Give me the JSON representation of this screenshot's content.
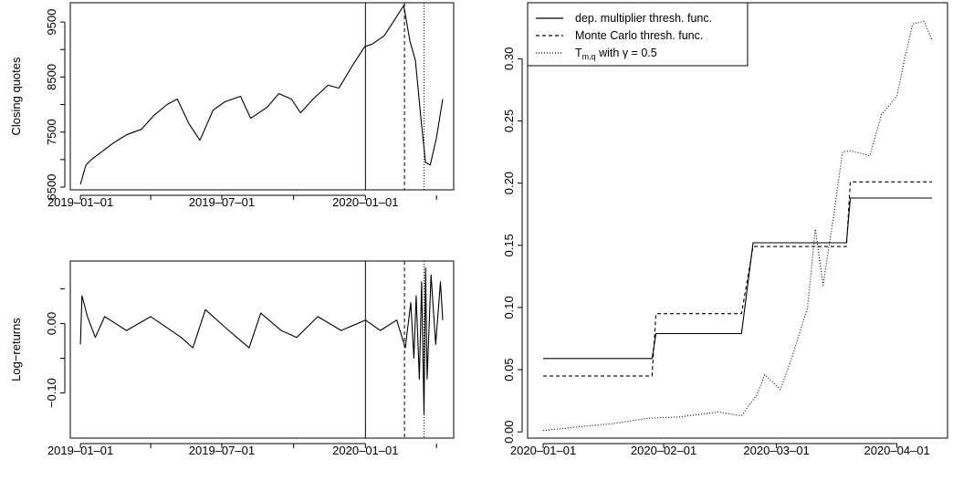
{
  "chart_data": [
    {
      "type": "line",
      "ylabel": "Closing quotes",
      "x_ticks": [
        "2019-01-01",
        "2019-07-01",
        "2020-01-01"
      ],
      "y_ticks": [
        "6500",
        "7500",
        "8500",
        "9500"
      ],
      "ylim": [
        6450,
        9850
      ],
      "vlines": [
        {
          "date": "2020-01-01",
          "style": "solid"
        },
        {
          "date": "2020-02-20",
          "style": "dashed"
        },
        {
          "date": "2020-03-16",
          "style": "dotted"
        }
      ],
      "series": [
        {
          "points": [
            [
              "2019-01-01",
              6550
            ],
            [
              "2019-01-08",
              6900
            ],
            [
              "2019-01-15",
              7000
            ],
            [
              "2019-01-29",
              7150
            ],
            [
              "2019-02-12",
              7300
            ],
            [
              "2019-03-01",
              7450
            ],
            [
              "2019-03-20",
              7550
            ],
            [
              "2019-04-05",
              7800
            ],
            [
              "2019-04-22",
              8000
            ],
            [
              "2019-05-05",
              8100
            ],
            [
              "2019-05-20",
              7650
            ],
            [
              "2019-06-03",
              7350
            ],
            [
              "2019-06-20",
              7900
            ],
            [
              "2019-07-05",
              8050
            ],
            [
              "2019-07-25",
              8150
            ],
            [
              "2019-08-07",
              7750
            ],
            [
              "2019-08-28",
              7950
            ],
            [
              "2019-09-12",
              8200
            ],
            [
              "2019-09-28",
              8100
            ],
            [
              "2019-10-10",
              7850
            ],
            [
              "2019-10-26",
              8100
            ],
            [
              "2019-11-14",
              8350
            ],
            [
              "2019-11-28",
              8300
            ],
            [
              "2019-12-15",
              8700
            ],
            [
              "2019-12-31",
              9050
            ],
            [
              "2020-01-10",
              9100
            ],
            [
              "2020-01-25",
              9250
            ],
            [
              "2020-02-10",
              9600
            ],
            [
              "2020-02-19",
              9800
            ],
            [
              "2020-02-27",
              9150
            ],
            [
              "2020-03-05",
              8800
            ],
            [
              "2020-03-12",
              7750
            ],
            [
              "2020-03-18",
              6950
            ],
            [
              "2020-03-24",
              6900
            ],
            [
              "2020-04-01",
              7400
            ],
            [
              "2020-04-09",
              8100
            ]
          ]
        }
      ]
    },
    {
      "type": "line",
      "ylabel": "Log−returns",
      "x_ticks": [
        "2019-01-01",
        "2019-07-01",
        "2020-01-01"
      ],
      "y_ticks": [
        "0.00",
        "−0.10"
      ],
      "ylim": [
        -0.165,
        0.09
      ],
      "vlines": [
        {
          "date": "2020-01-01",
          "style": "solid"
        },
        {
          "date": "2020-02-20",
          "style": "dashed"
        },
        {
          "date": "2020-03-16",
          "style": "dotted"
        }
      ],
      "series": [
        {
          "points": [
            [
              "2019-01-01",
              -0.03
            ],
            [
              "2019-01-03",
              0.04
            ],
            [
              "2019-01-10",
              0.01
            ],
            [
              "2019-01-20",
              -0.02
            ],
            [
              "2019-02-01",
              0.01
            ],
            [
              "2019-03-01",
              -0.01
            ],
            [
              "2019-04-01",
              0.01
            ],
            [
              "2019-05-10",
              -0.02
            ],
            [
              "2019-05-25",
              -0.035
            ],
            [
              "2019-06-10",
              0.02
            ],
            [
              "2019-07-10",
              -0.01
            ],
            [
              "2019-08-05",
              -0.035
            ],
            [
              "2019-08-20",
              0.015
            ],
            [
              "2019-09-15",
              -0.01
            ],
            [
              "2019-10-05",
              -0.02
            ],
            [
              "2019-11-01",
              0.01
            ],
            [
              "2019-12-01",
              -0.01
            ],
            [
              "2020-01-01",
              0.005
            ],
            [
              "2020-01-20",
              -0.01
            ],
            [
              "2020-02-10",
              0.005
            ],
            [
              "2020-02-21",
              -0.035
            ],
            [
              "2020-02-28",
              0.03
            ],
            [
              "2020-03-03",
              -0.05
            ],
            [
              "2020-03-06",
              0.04
            ],
            [
              "2020-03-10",
              -0.08
            ],
            [
              "2020-03-13",
              0.06
            ],
            [
              "2020-03-16",
              -0.13
            ],
            [
              "2020-03-18",
              0.08
            ],
            [
              "2020-03-20",
              -0.08
            ],
            [
              "2020-03-25",
              0.07
            ],
            [
              "2020-03-31",
              -0.03
            ],
            [
              "2020-04-06",
              0.06
            ],
            [
              "2020-04-09",
              0.005
            ]
          ]
        }
      ]
    },
    {
      "type": "line",
      "x_ticks": [
        "2020-01-01",
        "2020-02-01",
        "2020-03-01",
        "2020-04-01"
      ],
      "y_ticks": [
        "0.00",
        "0.05",
        "0.10",
        "0.15",
        "0.20",
        "0.25",
        "0.30"
      ],
      "ylim": [
        -0.005,
        0.345
      ],
      "legend_position": "top-left",
      "series": [
        {
          "name": "dep. multiplier thresh. func.",
          "style": "solid",
          "points": [
            [
              "2020-01-01",
              0.059
            ],
            [
              "2020-01-29",
              0.059
            ],
            [
              "2020-01-30",
              0.079
            ],
            [
              "2020-02-21",
              0.079
            ],
            [
              "2020-02-24",
              0.152
            ],
            [
              "2020-03-19",
              0.152
            ],
            [
              "2020-03-20",
              0.188
            ],
            [
              "2020-04-10",
              0.188
            ]
          ]
        },
        {
          "name": "Monte Carlo thresh. func.",
          "style": "dashed",
          "points": [
            [
              "2020-01-01",
              0.045
            ],
            [
              "2020-01-29",
              0.045
            ],
            [
              "2020-01-30",
              0.095
            ],
            [
              "2020-02-21",
              0.095
            ],
            [
              "2020-02-24",
              0.149
            ],
            [
              "2020-03-19",
              0.149
            ],
            [
              "2020-03-20",
              0.201
            ],
            [
              "2020-04-10",
              0.201
            ]
          ]
        },
        {
          "name": "T_m,q with γ = 0.5",
          "style": "dotted",
          "points": [
            [
              "2020-01-01",
              0.001
            ],
            [
              "2020-01-10",
              0.004
            ],
            [
              "2020-01-20",
              0.007
            ],
            [
              "2020-01-28",
              0.011
            ],
            [
              "2020-02-05",
              0.012
            ],
            [
              "2020-02-15",
              0.016
            ],
            [
              "2020-02-21",
              0.013
            ],
            [
              "2020-02-25",
              0.03
            ],
            [
              "2020-02-27",
              0.046
            ],
            [
              "2020-03-02",
              0.034
            ],
            [
              "2020-03-05",
              0.06
            ],
            [
              "2020-03-09",
              0.1
            ],
            [
              "2020-03-11",
              0.163
            ],
            [
              "2020-03-13",
              0.118
            ],
            [
              "2020-03-16",
              0.18
            ],
            [
              "2020-03-18",
              0.225
            ],
            [
              "2020-03-20",
              0.226
            ],
            [
              "2020-03-25",
              0.222
            ],
            [
              "2020-03-28",
              0.255
            ],
            [
              "2020-04-01",
              0.27
            ],
            [
              "2020-04-03",
              0.3
            ],
            [
              "2020-04-05",
              0.328
            ],
            [
              "2020-04-08",
              0.33
            ],
            [
              "2020-04-10",
              0.315
            ]
          ]
        }
      ]
    }
  ],
  "legend": {
    "item1": "dep. multiplier thresh. func.",
    "item2": "Monte Carlo thresh. func.",
    "item3_main": "T",
    "item3_sub": "m,q",
    "item3_rest": " with γ = 0.5"
  }
}
